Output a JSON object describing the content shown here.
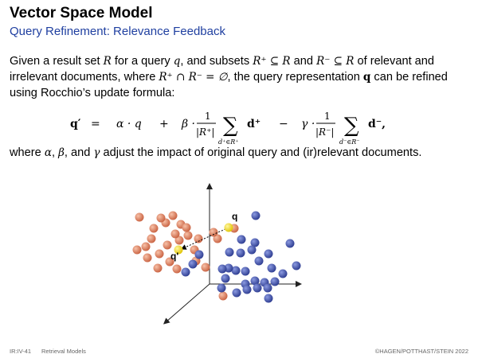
{
  "header": {
    "title": "Vector Space Model",
    "subtitle": "Query Refinement: Relevance Feedback"
  },
  "paragraph": {
    "t1": "Given a result set",
    "t2": "for a query",
    "t3": ", and subsets",
    "t4": "and",
    "t5": "of relevant and irrelevant documents, where",
    "t6": ", the query representation",
    "t7": "can be refined using Rocchio’s update formula:",
    "m_R": "R",
    "m_q": "q",
    "m_Rplus": "R⁺ ⊆ R",
    "m_Rminus": "R⁻ ⊆ R",
    "m_cap": "R⁺ ∩ R⁻ = ∅",
    "m_qbold": "q"
  },
  "formula": {
    "lhs": "q′",
    "eq": "=",
    "alpha_term": "α · q",
    "plus": "+",
    "beta_dot": "β ·",
    "frac1_num": "1",
    "frac1_den": "|R⁺|",
    "sum1": "∑",
    "sum1_sub": "d⁺∈R⁺",
    "d_plus": "d⁺",
    "minus": "−",
    "gamma_dot": "γ ·",
    "frac2_num": "1",
    "frac2_den": "|R⁻|",
    "sum2": "∑",
    "sum2_sub": "d⁻∈R⁻",
    "d_minus": "d⁻,"
  },
  "tail": {
    "t1": "where",
    "alpha": "α",
    "t2": ",",
    "beta": "β",
    "t3": ", and",
    "gamma": "γ",
    "t4": "adjust the impact of original query and (ir)relevant documents."
  },
  "figure": {
    "label_q": "q",
    "label_qprime": "q'",
    "colors": {
      "relevant": "#4a5cb4",
      "irrelevant": "#e07f5e",
      "query": "#f0d800",
      "axis": "#222222"
    }
  },
  "footer": {
    "slide_id": "IR:IV-41",
    "section": "Retrieval Models",
    "copyright": "©HAGEN/POTTHAST/STEIN 2022"
  }
}
